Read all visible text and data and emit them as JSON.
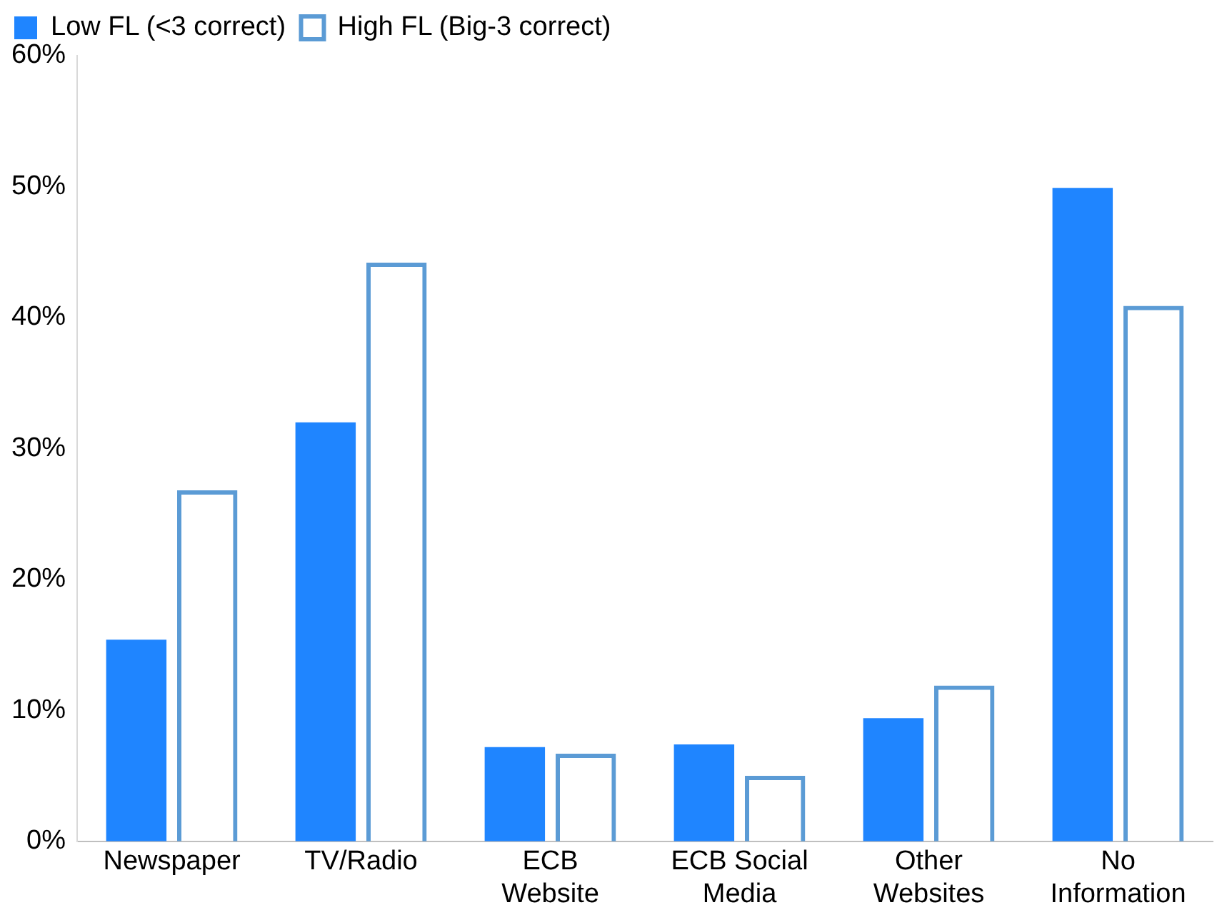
{
  "chart_data": {
    "type": "bar",
    "categories": [
      "Newspaper",
      "TV/Radio",
      "ECB Website",
      "ECB Social Media",
      "Other Websites",
      "No Information"
    ],
    "series": [
      {
        "name": "Low FL (<3 correct)",
        "color": "#1f85ff",
        "values": [
          15.4,
          32.0,
          7.2,
          7.4,
          9.4,
          49.9
        ]
      },
      {
        "name": "High FL (Big-3 correct)",
        "color": "#5b9bd5",
        "values": [
          26.8,
          44.2,
          6.7,
          5.0,
          11.9,
          40.9
        ]
      }
    ],
    "ylim": [
      0,
      60
    ],
    "yticks": [
      {
        "value": 0,
        "label": "0%"
      },
      {
        "value": 10,
        "label": "10%"
      },
      {
        "value": 20,
        "label": "20%"
      },
      {
        "value": 30,
        "label": "30%"
      },
      {
        "value": 40,
        "label": "40%"
      },
      {
        "value": 50,
        "label": "50%"
      },
      {
        "value": 60,
        "label": "60%"
      }
    ],
    "grid": false,
    "legend": "top left"
  }
}
